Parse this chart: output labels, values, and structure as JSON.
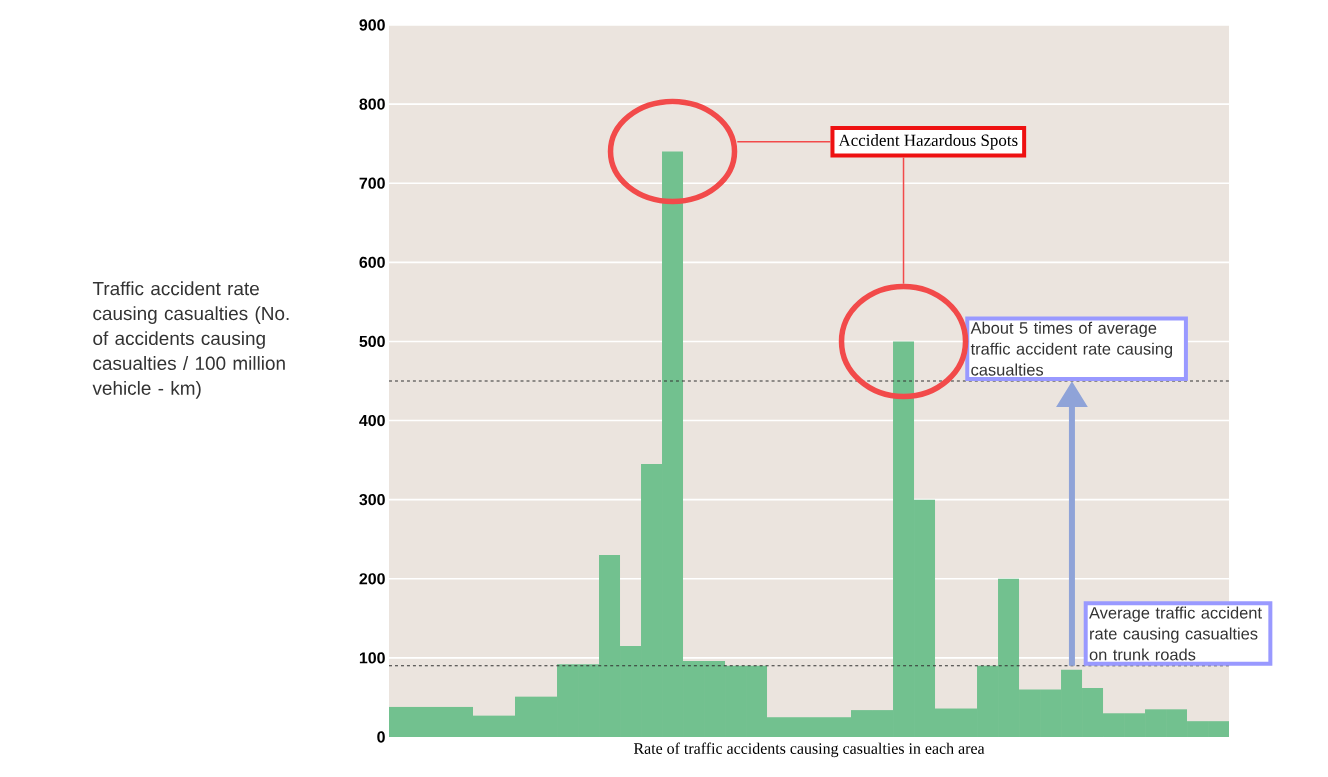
{
  "chart_data": {
    "type": "bar",
    "color": "#72c18f",
    "categories": [
      null,
      null,
      null,
      null,
      null,
      null,
      null,
      null,
      null,
      null,
      null,
      null,
      null,
      null,
      null,
      null,
      null,
      null,
      null,
      null,
      null,
      null,
      null,
      null,
      null,
      null,
      null,
      null,
      null,
      null,
      null,
      null,
      null,
      null,
      null,
      null,
      null,
      null,
      null,
      null
    ],
    "values": [
      38,
      38,
      38,
      38,
      27,
      27,
      51,
      51,
      92,
      92,
      230,
      115,
      345,
      740,
      96,
      96,
      90,
      90,
      25,
      25,
      25,
      25,
      34,
      34,
      500,
      300,
      36,
      36,
      90,
      200,
      60,
      60,
      85,
      62,
      30,
      30,
      35,
      35,
      20,
      20
    ],
    "ylim": [
      0,
      900
    ],
    "yticks": [
      0,
      100,
      200,
      300,
      400,
      500,
      600,
      700,
      800,
      900
    ],
    "grid": "y",
    "xlabel": "Rate of traffic accidents causing casualties in each area",
    "ylabel": "Traffic accident rate causing casualties (No. of accidents causing casualties / 100 million vehicle - km)",
    "ref_lines": [
      {
        "axis": "y",
        "value": 90,
        "label": "Average traffic accident rate causing casualties on trunk roads",
        "color": "#333333",
        "line_style": "dashed"
      },
      {
        "axis": "y",
        "value": 450,
        "label": "About 5 times of average traffic accident rate causing casualties",
        "color": "#333333",
        "line_style": "dashed"
      }
    ],
    "annotations": [
      "Accident Hazardous Spots"
    ]
  }
}
